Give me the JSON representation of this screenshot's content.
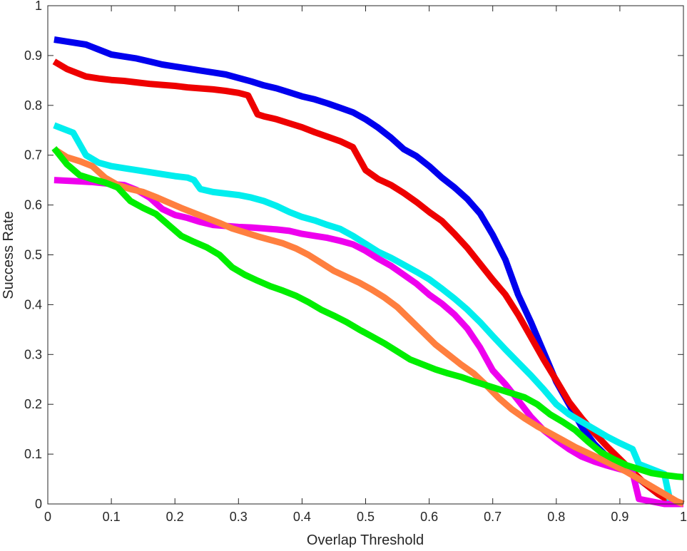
{
  "chart_data": {
    "type": "line",
    "xlabel": "Overlap Threshold",
    "ylabel": "Success Rate",
    "xlim": [
      0,
      1
    ],
    "ylim": [
      0,
      1
    ],
    "xticks": [
      "0",
      "0.1",
      "0.2",
      "0.3",
      "0.4",
      "0.5",
      "0.6",
      "0.7",
      "0.8",
      "0.9",
      "1"
    ],
    "yticks": [
      "0",
      "0.1",
      "0.2",
      "0.3",
      "0.4",
      "0.5",
      "0.6",
      "0.7",
      "0.8",
      "0.9",
      "1"
    ],
    "grid": false,
    "legend": "none",
    "series": [
      {
        "color": "#0000ee",
        "points": [
          [
            0.01,
            0.932
          ],
          [
            0.03,
            0.928
          ],
          [
            0.06,
            0.922
          ],
          [
            0.08,
            0.912
          ],
          [
            0.1,
            0.902
          ],
          [
            0.12,
            0.898
          ],
          [
            0.14,
            0.894
          ],
          [
            0.16,
            0.888
          ],
          [
            0.18,
            0.882
          ],
          [
            0.2,
            0.878
          ],
          [
            0.22,
            0.874
          ],
          [
            0.24,
            0.87
          ],
          [
            0.26,
            0.866
          ],
          [
            0.28,
            0.862
          ],
          [
            0.3,
            0.855
          ],
          [
            0.32,
            0.848
          ],
          [
            0.34,
            0.84
          ],
          [
            0.36,
            0.834
          ],
          [
            0.38,
            0.826
          ],
          [
            0.4,
            0.818
          ],
          [
            0.42,
            0.812
          ],
          [
            0.44,
            0.804
          ],
          [
            0.46,
            0.795
          ],
          [
            0.48,
            0.786
          ],
          [
            0.5,
            0.772
          ],
          [
            0.52,
            0.755
          ],
          [
            0.54,
            0.735
          ],
          [
            0.56,
            0.712
          ],
          [
            0.58,
            0.698
          ],
          [
            0.6,
            0.678
          ],
          [
            0.62,
            0.655
          ],
          [
            0.64,
            0.635
          ],
          [
            0.66,
            0.612
          ],
          [
            0.68,
            0.583
          ],
          [
            0.7,
            0.54
          ],
          [
            0.72,
            0.49
          ],
          [
            0.74,
            0.42
          ],
          [
            0.76,
            0.365
          ],
          [
            0.78,
            0.305
          ],
          [
            0.8,
            0.245
          ],
          [
            0.82,
            0.2
          ],
          [
            0.84,
            0.155
          ],
          [
            0.86,
            0.12
          ],
          [
            0.88,
            0.095
          ],
          [
            0.9,
            0.08
          ],
          [
            0.92,
            0.06
          ],
          [
            0.94,
            0.04
          ],
          [
            0.96,
            0.02
          ],
          [
            0.98,
            0.005
          ],
          [
            1.0,
            0.0
          ]
        ]
      },
      {
        "color": "#ee0000",
        "points": [
          [
            0.01,
            0.888
          ],
          [
            0.03,
            0.873
          ],
          [
            0.06,
            0.858
          ],
          [
            0.08,
            0.854
          ],
          [
            0.1,
            0.851
          ],
          [
            0.12,
            0.849
          ],
          [
            0.14,
            0.846
          ],
          [
            0.16,
            0.843
          ],
          [
            0.18,
            0.841
          ],
          [
            0.2,
            0.839
          ],
          [
            0.22,
            0.836
          ],
          [
            0.24,
            0.834
          ],
          [
            0.26,
            0.832
          ],
          [
            0.28,
            0.829
          ],
          [
            0.3,
            0.825
          ],
          [
            0.315,
            0.82
          ],
          [
            0.33,
            0.782
          ],
          [
            0.34,
            0.778
          ],
          [
            0.36,
            0.772
          ],
          [
            0.38,
            0.764
          ],
          [
            0.4,
            0.756
          ],
          [
            0.42,
            0.746
          ],
          [
            0.44,
            0.737
          ],
          [
            0.46,
            0.728
          ],
          [
            0.48,
            0.716
          ],
          [
            0.5,
            0.67
          ],
          [
            0.52,
            0.652
          ],
          [
            0.54,
            0.64
          ],
          [
            0.56,
            0.624
          ],
          [
            0.58,
            0.606
          ],
          [
            0.6,
            0.586
          ],
          [
            0.62,
            0.568
          ],
          [
            0.64,
            0.542
          ],
          [
            0.66,
            0.514
          ],
          [
            0.68,
            0.482
          ],
          [
            0.7,
            0.45
          ],
          [
            0.72,
            0.42
          ],
          [
            0.74,
            0.38
          ],
          [
            0.76,
            0.335
          ],
          [
            0.78,
            0.29
          ],
          [
            0.8,
            0.248
          ],
          [
            0.82,
            0.205
          ],
          [
            0.84,
            0.172
          ],
          [
            0.86,
            0.142
          ],
          [
            0.88,
            0.115
          ],
          [
            0.9,
            0.09
          ],
          [
            0.92,
            0.065
          ],
          [
            0.94,
            0.04
          ],
          [
            0.96,
            0.02
          ],
          [
            0.98,
            0.005
          ],
          [
            1.0,
            0.0
          ]
        ]
      },
      {
        "color": "#00eeee",
        "points": [
          [
            0.01,
            0.76
          ],
          [
            0.04,
            0.745
          ],
          [
            0.06,
            0.7
          ],
          [
            0.08,
            0.685
          ],
          [
            0.1,
            0.678
          ],
          [
            0.12,
            0.674
          ],
          [
            0.14,
            0.67
          ],
          [
            0.16,
            0.666
          ],
          [
            0.18,
            0.662
          ],
          [
            0.2,
            0.658
          ],
          [
            0.22,
            0.655
          ],
          [
            0.23,
            0.65
          ],
          [
            0.24,
            0.632
          ],
          [
            0.26,
            0.626
          ],
          [
            0.28,
            0.623
          ],
          [
            0.3,
            0.62
          ],
          [
            0.32,
            0.615
          ],
          [
            0.34,
            0.608
          ],
          [
            0.36,
            0.598
          ],
          [
            0.38,
            0.586
          ],
          [
            0.4,
            0.576
          ],
          [
            0.42,
            0.569
          ],
          [
            0.44,
            0.56
          ],
          [
            0.46,
            0.552
          ],
          [
            0.48,
            0.538
          ],
          [
            0.5,
            0.522
          ],
          [
            0.52,
            0.506
          ],
          [
            0.54,
            0.494
          ],
          [
            0.56,
            0.48
          ],
          [
            0.58,
            0.466
          ],
          [
            0.6,
            0.451
          ],
          [
            0.62,
            0.432
          ],
          [
            0.64,
            0.412
          ],
          [
            0.66,
            0.39
          ],
          [
            0.68,
            0.365
          ],
          [
            0.7,
            0.337
          ],
          [
            0.72,
            0.31
          ],
          [
            0.74,
            0.284
          ],
          [
            0.76,
            0.258
          ],
          [
            0.78,
            0.23
          ],
          [
            0.8,
            0.2
          ],
          [
            0.82,
            0.18
          ],
          [
            0.84,
            0.165
          ],
          [
            0.86,
            0.15
          ],
          [
            0.88,
            0.135
          ],
          [
            0.9,
            0.122
          ],
          [
            0.92,
            0.11
          ],
          [
            0.93,
            0.08
          ],
          [
            0.95,
            0.07
          ],
          [
            0.97,
            0.06
          ],
          [
            0.98,
            0.0
          ],
          [
            1.0,
            0.0
          ]
        ]
      },
      {
        "color": "#ee00ee",
        "points": [
          [
            0.01,
            0.65
          ],
          [
            0.04,
            0.648
          ],
          [
            0.07,
            0.646
          ],
          [
            0.1,
            0.642
          ],
          [
            0.12,
            0.64
          ],
          [
            0.14,
            0.63
          ],
          [
            0.16,
            0.615
          ],
          [
            0.18,
            0.592
          ],
          [
            0.2,
            0.58
          ],
          [
            0.22,
            0.574
          ],
          [
            0.24,
            0.566
          ],
          [
            0.26,
            0.56
          ],
          [
            0.28,
            0.558
          ],
          [
            0.3,
            0.556
          ],
          [
            0.32,
            0.555
          ],
          [
            0.34,
            0.553
          ],
          [
            0.36,
            0.551
          ],
          [
            0.38,
            0.548
          ],
          [
            0.4,
            0.542
          ],
          [
            0.42,
            0.538
          ],
          [
            0.44,
            0.534
          ],
          [
            0.46,
            0.528
          ],
          [
            0.48,
            0.521
          ],
          [
            0.5,
            0.508
          ],
          [
            0.52,
            0.492
          ],
          [
            0.54,
            0.478
          ],
          [
            0.56,
            0.46
          ],
          [
            0.58,
            0.442
          ],
          [
            0.6,
            0.42
          ],
          [
            0.62,
            0.402
          ],
          [
            0.64,
            0.38
          ],
          [
            0.66,
            0.352
          ],
          [
            0.68,
            0.314
          ],
          [
            0.7,
            0.268
          ],
          [
            0.72,
            0.24
          ],
          [
            0.74,
            0.208
          ],
          [
            0.76,
            0.175
          ],
          [
            0.78,
            0.148
          ],
          [
            0.8,
            0.128
          ],
          [
            0.82,
            0.11
          ],
          [
            0.84,
            0.095
          ],
          [
            0.86,
            0.085
          ],
          [
            0.88,
            0.077
          ],
          [
            0.9,
            0.07
          ],
          [
            0.92,
            0.063
          ],
          [
            0.93,
            0.01
          ],
          [
            0.95,
            0.005
          ],
          [
            0.97,
            0.0
          ],
          [
            1.0,
            0.0
          ]
        ]
      },
      {
        "color": "#ff7f3f",
        "points": [
          [
            0.01,
            0.712
          ],
          [
            0.03,
            0.696
          ],
          [
            0.05,
            0.688
          ],
          [
            0.07,
            0.678
          ],
          [
            0.09,
            0.655
          ],
          [
            0.11,
            0.64
          ],
          [
            0.13,
            0.632
          ],
          [
            0.15,
            0.626
          ],
          [
            0.17,
            0.616
          ],
          [
            0.19,
            0.605
          ],
          [
            0.21,
            0.594
          ],
          [
            0.23,
            0.584
          ],
          [
            0.25,
            0.574
          ],
          [
            0.27,
            0.564
          ],
          [
            0.29,
            0.553
          ],
          [
            0.31,
            0.545
          ],
          [
            0.33,
            0.537
          ],
          [
            0.35,
            0.53
          ],
          [
            0.37,
            0.523
          ],
          [
            0.39,
            0.513
          ],
          [
            0.41,
            0.5
          ],
          [
            0.43,
            0.484
          ],
          [
            0.45,
            0.468
          ],
          [
            0.47,
            0.456
          ],
          [
            0.49,
            0.444
          ],
          [
            0.51,
            0.43
          ],
          [
            0.53,
            0.414
          ],
          [
            0.55,
            0.395
          ],
          [
            0.57,
            0.37
          ],
          [
            0.59,
            0.345
          ],
          [
            0.61,
            0.32
          ],
          [
            0.63,
            0.3
          ],
          [
            0.65,
            0.28
          ],
          [
            0.67,
            0.262
          ],
          [
            0.69,
            0.238
          ],
          [
            0.71,
            0.212
          ],
          [
            0.73,
            0.19
          ],
          [
            0.75,
            0.172
          ],
          [
            0.77,
            0.156
          ],
          [
            0.79,
            0.142
          ],
          [
            0.81,
            0.128
          ],
          [
            0.83,
            0.114
          ],
          [
            0.85,
            0.102
          ],
          [
            0.87,
            0.09
          ],
          [
            0.89,
            0.078
          ],
          [
            0.91,
            0.065
          ],
          [
            0.93,
            0.05
          ],
          [
            0.95,
            0.035
          ],
          [
            0.97,
            0.02
          ],
          [
            0.99,
            0.005
          ],
          [
            1.0,
            0.0
          ]
        ]
      },
      {
        "color": "#00ee00",
        "points": [
          [
            0.01,
            0.714
          ],
          [
            0.03,
            0.682
          ],
          [
            0.05,
            0.66
          ],
          [
            0.07,
            0.652
          ],
          [
            0.09,
            0.645
          ],
          [
            0.11,
            0.635
          ],
          [
            0.13,
            0.608
          ],
          [
            0.15,
            0.594
          ],
          [
            0.17,
            0.582
          ],
          [
            0.19,
            0.56
          ],
          [
            0.21,
            0.538
          ],
          [
            0.23,
            0.526
          ],
          [
            0.25,
            0.515
          ],
          [
            0.27,
            0.5
          ],
          [
            0.29,
            0.475
          ],
          [
            0.31,
            0.46
          ],
          [
            0.33,
            0.448
          ],
          [
            0.35,
            0.437
          ],
          [
            0.37,
            0.428
          ],
          [
            0.39,
            0.418
          ],
          [
            0.41,
            0.405
          ],
          [
            0.43,
            0.39
          ],
          [
            0.45,
            0.378
          ],
          [
            0.47,
            0.365
          ],
          [
            0.49,
            0.35
          ],
          [
            0.51,
            0.336
          ],
          [
            0.53,
            0.322
          ],
          [
            0.55,
            0.306
          ],
          [
            0.57,
            0.29
          ],
          [
            0.59,
            0.28
          ],
          [
            0.61,
            0.27
          ],
          [
            0.63,
            0.262
          ],
          [
            0.65,
            0.255
          ],
          [
            0.67,
            0.246
          ],
          [
            0.69,
            0.238
          ],
          [
            0.71,
            0.23
          ],
          [
            0.73,
            0.222
          ],
          [
            0.75,
            0.214
          ],
          [
            0.77,
            0.2
          ],
          [
            0.79,
            0.18
          ],
          [
            0.81,
            0.165
          ],
          [
            0.83,
            0.148
          ],
          [
            0.85,
            0.125
          ],
          [
            0.87,
            0.104
          ],
          [
            0.89,
            0.09
          ],
          [
            0.91,
            0.078
          ],
          [
            0.93,
            0.07
          ],
          [
            0.95,
            0.062
          ],
          [
            0.97,
            0.058
          ],
          [
            0.99,
            0.055
          ],
          [
            1.0,
            0.054
          ]
        ]
      }
    ]
  }
}
